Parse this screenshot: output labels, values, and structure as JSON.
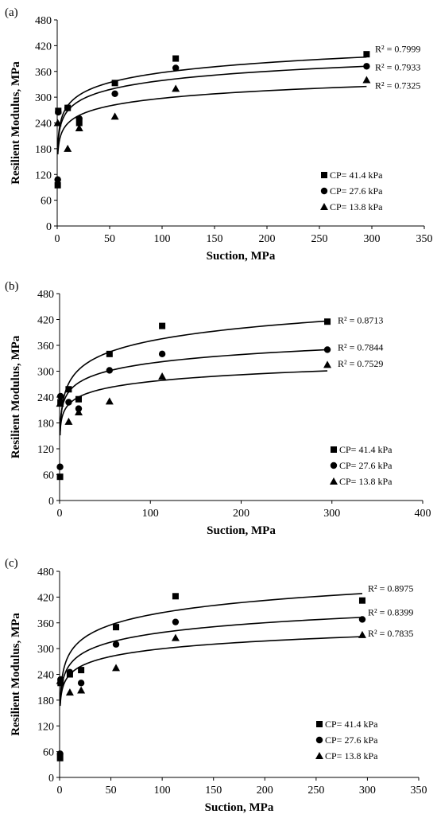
{
  "legend_symbols": {
    "CP= 41.4 kPa": "square",
    "CP= 27.6 kPa": "circle",
    "CP= 13.8 kPa": "triangle"
  },
  "chart_data": [
    {
      "type": "scatter",
      "panel_label": "(a)",
      "xlabel": "Suction, MPa",
      "ylabel": "Resilient Modulus, MPa",
      "xlim": [
        0,
        350
      ],
      "ylim": [
        0,
        480
      ],
      "xticks": [
        "0",
        "50",
        "100",
        "150",
        "200",
        "250",
        "300",
        "350"
      ],
      "yticks": [
        "0",
        "60",
        "120",
        "180",
        "240",
        "300",
        "360",
        "420",
        "480"
      ],
      "grid": false,
      "legend_position": "bottom-right",
      "series": [
        {
          "name": "CP= 41.4 kPa",
          "marker": "square",
          "points": [
            [
              0.5,
              95
            ],
            [
              1,
              268
            ],
            [
              10,
              275
            ],
            [
              21,
              240
            ],
            [
              55,
              333
            ],
            [
              113,
              390
            ],
            [
              295,
              400
            ]
          ],
          "fit": {
            "a": 203,
            "b": 33.5
          },
          "r2_label": "R² = 0.7999",
          "r2_y": 412
        },
        {
          "name": "CP= 27.6 kPa",
          "marker": "circle",
          "points": [
            [
              0.5,
              108
            ],
            [
              1,
              265
            ],
            [
              10,
              275
            ],
            [
              21,
              250
            ],
            [
              55,
              308
            ],
            [
              113,
              368
            ],
            [
              295,
              372
            ]
          ],
          "fit": {
            "a": 198,
            "b": 30.6
          },
          "r2_label": "R² = 0.7933",
          "r2_y": 370
        },
        {
          "name": "CP= 13.8 kPa",
          "marker": "triangle",
          "points": [
            [
              0.5,
              240
            ],
            [
              10,
              180
            ],
            [
              21,
              228
            ],
            [
              55,
              255
            ],
            [
              113,
              320
            ],
            [
              295,
              340
            ]
          ],
          "fit": {
            "a": 180,
            "b": 25.5
          },
          "r2_label": "R² = 0.7325",
          "r2_y": 327
        }
      ]
    },
    {
      "type": "scatter",
      "panel_label": "(b)",
      "xlabel": "Suction, MPa",
      "ylabel": "Resilient Modulus, MPa",
      "xlim": [
        0,
        400
      ],
      "ylim": [
        0,
        480
      ],
      "xticks": [
        "0",
        "100",
        "200",
        "300",
        "400"
      ],
      "yticks": [
        "0",
        "60",
        "120",
        "180",
        "240",
        "300",
        "360",
        "420",
        "480"
      ],
      "grid": false,
      "legend_position": "bottom-right",
      "series": [
        {
          "name": "CP= 41.4 kPa",
          "marker": "square",
          "points": [
            [
              0.5,
              55
            ],
            [
              1,
              228
            ],
            [
              10,
              258
            ],
            [
              21,
              235
            ],
            [
              55,
              340
            ],
            [
              113,
              405
            ],
            [
              295,
              415
            ]
          ],
          "fit": {
            "a": 173,
            "b": 42.8
          },
          "r2_label": "R² = 0.8713",
          "r2_y": 418
        },
        {
          "name": "CP= 27.6 kPa",
          "marker": "circle",
          "points": [
            [
              0.5,
              78
            ],
            [
              1,
              242
            ],
            [
              10,
              228
            ],
            [
              21,
              213
            ],
            [
              55,
              302
            ],
            [
              113,
              340
            ],
            [
              295,
              350
            ]
          ],
          "fit": {
            "a": 185,
            "b": 29
          },
          "r2_label": "R² = 0.7844",
          "r2_y": 355
        },
        {
          "name": "CP= 13.8 kPa",
          "marker": "triangle",
          "points": [
            [
              0.5,
              225
            ],
            [
              10,
              183
            ],
            [
              21,
              205
            ],
            [
              55,
              230
            ],
            [
              113,
              288
            ],
            [
              295,
              315
            ]
          ],
          "fit": {
            "a": 170,
            "b": 23
          },
          "r2_label": "R² = 0.7529",
          "r2_y": 318
        }
      ]
    },
    {
      "type": "scatter",
      "panel_label": "(c)",
      "xlabel": "Suction, MPa",
      "ylabel": "Resilient Modulus, MPa",
      "xlim": [
        0,
        350
      ],
      "ylim": [
        0,
        480
      ],
      "xticks": [
        "0",
        "50",
        "100",
        "150",
        "200",
        "250",
        "300",
        "350"
      ],
      "yticks": [
        "0",
        "60",
        "120",
        "180",
        "240",
        "300",
        "360",
        "420",
        "480"
      ],
      "grid": false,
      "legend_position": "bottom-right",
      "series": [
        {
          "name": "CP= 41.4 kPa",
          "marker": "square",
          "points": [
            [
              0.5,
              45
            ],
            [
              1,
              220
            ],
            [
              10,
              240
            ],
            [
              21,
              250
            ],
            [
              55,
              350
            ],
            [
              113,
              422
            ],
            [
              295,
              412
            ]
          ],
          "fit": {
            "a": 195,
            "b": 41
          },
          "r2_label": "R² = 0.8975",
          "r2_y": 440
        },
        {
          "name": "CP= 27.6 kPa",
          "marker": "circle",
          "points": [
            [
              0.5,
              55
            ],
            [
              1,
              228
            ],
            [
              10,
              245
            ],
            [
              21,
              220
            ],
            [
              55,
              310
            ],
            [
              113,
              362
            ],
            [
              295,
              368
            ]
          ],
          "fit": {
            "a": 188,
            "b": 32.5
          },
          "r2_label": "R² = 0.8399",
          "r2_y": 385
        },
        {
          "name": "CP= 13.8 kPa",
          "marker": "triangle",
          "points": [
            [
              0.5,
              225
            ],
            [
              10,
              198
            ],
            [
              21,
              203
            ],
            [
              55,
              255
            ],
            [
              113,
              325
            ],
            [
              295,
              332
            ]
          ],
          "fit": {
            "a": 180,
            "b": 26
          },
          "r2_label": "R² = 0.7835",
          "r2_y": 335
        }
      ]
    }
  ]
}
